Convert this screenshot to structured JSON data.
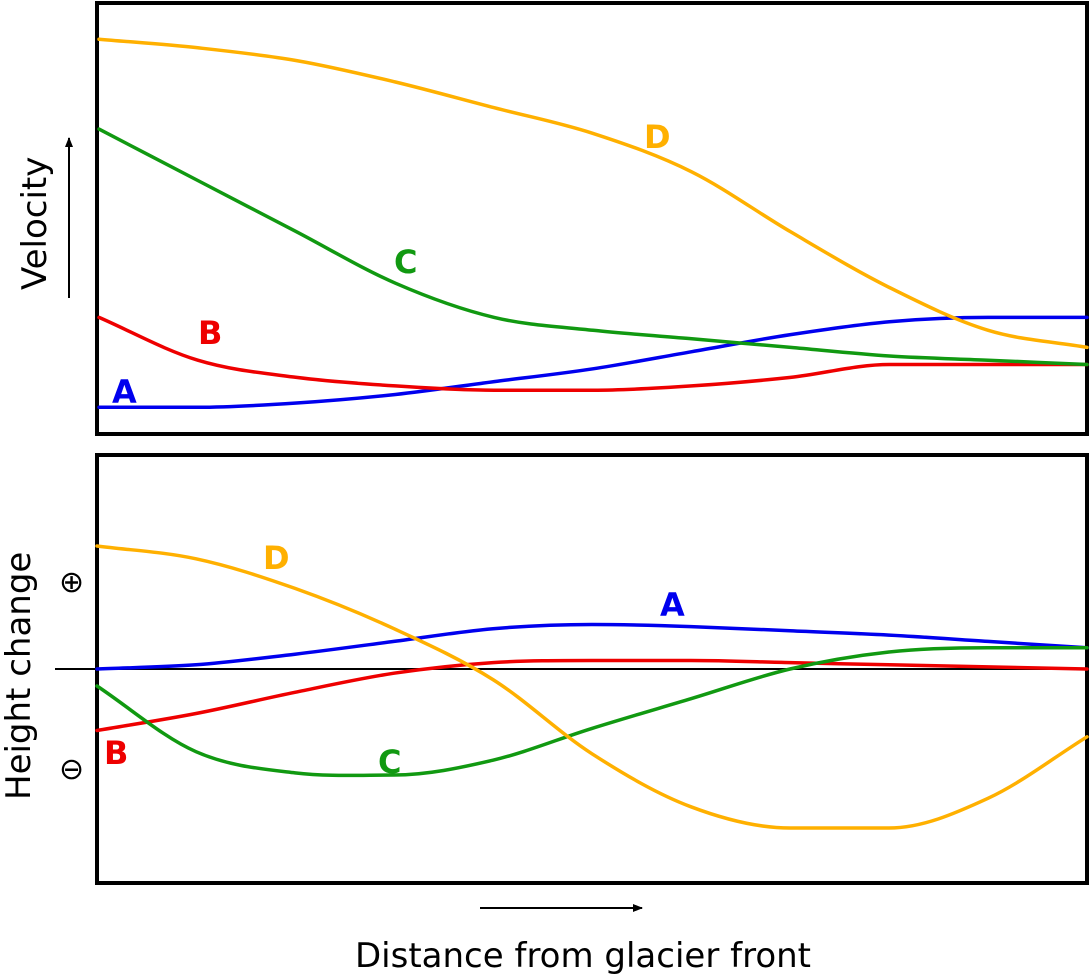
{
  "colors": {
    "A": "#0000ee",
    "B": "#ee0000",
    "C": "#119911",
    "D": "#ffb000",
    "frame": "#000000",
    "zero_line": "#000000"
  },
  "x_axis": {
    "label": "Distance from glacier front",
    "arrow": "right-arrow"
  },
  "chart_data": [
    {
      "type": "line",
      "id": "velocity",
      "ylabel": "Velocity",
      "y_arrow": "up-arrow",
      "x_ticks": "none",
      "y_ticks": "none",
      "grid": false,
      "xlim": [
        0,
        1
      ],
      "ylim": [
        0,
        1
      ],
      "series": [
        {
          "name": "A",
          "x": [
            0.0,
            0.1,
            0.2,
            0.3,
            0.4,
            0.5,
            0.6,
            0.7,
            0.8,
            0.9,
            1.0
          ],
          "values": [
            0.06,
            0.06,
            0.07,
            0.09,
            0.12,
            0.15,
            0.19,
            0.23,
            0.26,
            0.27,
            0.27
          ]
        },
        {
          "name": "B",
          "x": [
            0.0,
            0.1,
            0.2,
            0.3,
            0.4,
            0.5,
            0.6,
            0.7,
            0.8,
            0.9,
            1.0
          ],
          "values": [
            0.27,
            0.17,
            0.13,
            0.11,
            0.1,
            0.1,
            0.11,
            0.13,
            0.16,
            0.16,
            0.16
          ]
        },
        {
          "name": "C",
          "x": [
            0.0,
            0.1,
            0.2,
            0.3,
            0.4,
            0.5,
            0.6,
            0.7,
            0.8,
            0.9,
            1.0
          ],
          "values": [
            0.71,
            0.59,
            0.47,
            0.35,
            0.27,
            0.24,
            0.22,
            0.2,
            0.18,
            0.17,
            0.16
          ]
        },
        {
          "name": "D",
          "x": [
            0.0,
            0.1,
            0.2,
            0.3,
            0.4,
            0.5,
            0.6,
            0.7,
            0.8,
            0.9,
            1.0
          ],
          "values": [
            0.92,
            0.9,
            0.87,
            0.82,
            0.76,
            0.7,
            0.61,
            0.47,
            0.34,
            0.24,
            0.2
          ]
        }
      ]
    },
    {
      "type": "line",
      "id": "height-change",
      "ylabel": "Height change",
      "plus_sign": "⊕",
      "minus_sign": "⊖",
      "x_ticks": "none",
      "y_ticks": "none",
      "grid": false,
      "zero_line": true,
      "xlim": [
        0,
        1
      ],
      "ylim": [
        -1,
        1
      ],
      "series": [
        {
          "name": "A",
          "x": [
            0.0,
            0.1,
            0.2,
            0.3,
            0.4,
            0.5,
            0.6,
            0.7,
            0.8,
            0.9,
            1.0
          ],
          "values": [
            0.0,
            0.02,
            0.07,
            0.13,
            0.19,
            0.21,
            0.2,
            0.18,
            0.16,
            0.13,
            0.1
          ]
        },
        {
          "name": "B",
          "x": [
            0.0,
            0.1,
            0.2,
            0.3,
            0.4,
            0.5,
            0.6,
            0.7,
            0.8,
            0.9,
            1.0
          ],
          "values": [
            -0.29,
            -0.21,
            -0.11,
            -0.02,
            0.03,
            0.04,
            0.04,
            0.03,
            0.02,
            0.01,
            0.0
          ]
        },
        {
          "name": "C",
          "x": [
            0.0,
            0.1,
            0.2,
            0.3,
            0.4,
            0.5,
            0.6,
            0.7,
            0.8,
            0.9,
            1.0
          ],
          "values": [
            -0.08,
            -0.39,
            -0.49,
            -0.5,
            -0.43,
            -0.28,
            -0.14,
            0.0,
            0.08,
            0.1,
            0.1
          ]
        },
        {
          "name": "D",
          "x": [
            0.0,
            0.1,
            0.2,
            0.3,
            0.4,
            0.5,
            0.6,
            0.7,
            0.8,
            0.9,
            1.0
          ],
          "values": [
            0.58,
            0.52,
            0.38,
            0.19,
            -0.05,
            -0.4,
            -0.65,
            -0.75,
            -0.75,
            -0.61,
            -0.32
          ]
        }
      ]
    }
  ]
}
